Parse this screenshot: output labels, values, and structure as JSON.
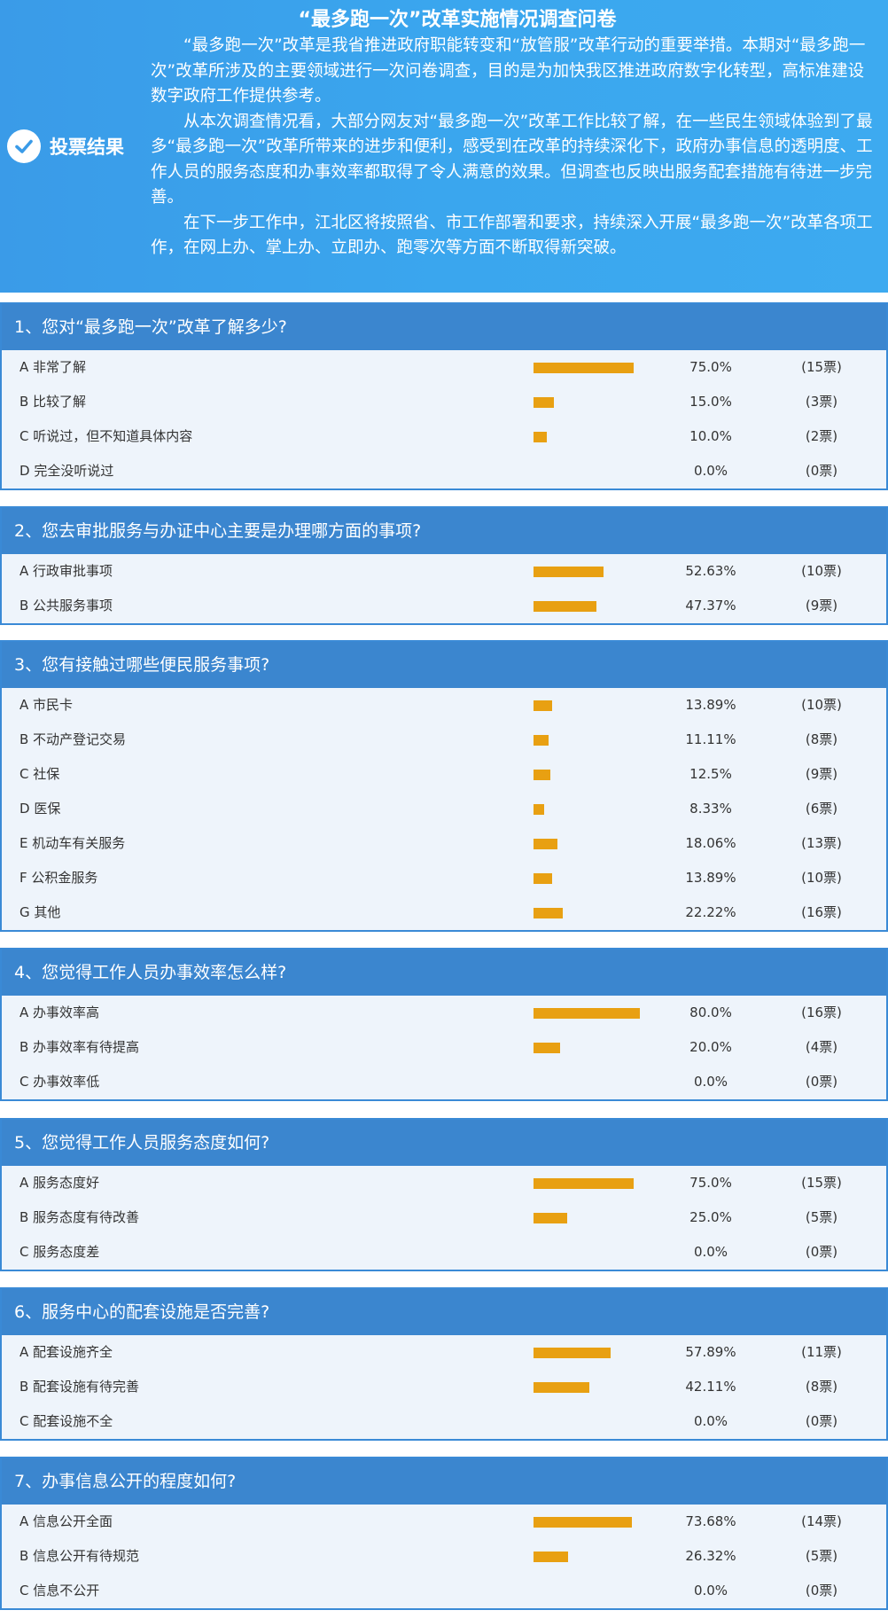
{
  "header": {
    "title": "“最多跑一次”改革实施情况调查问卷",
    "badge_label": "投票结果",
    "paragraphs": [
      "“最多跑一次”改革是我省推进政府职能转变和“放管服”改革行动的重要举措。本期对“最多跑一次”改革所涉及的主要领域进行一次问卷调查，目的是为加快我区推进政府数字化转型，高标准建设数字政府工作提供参考。",
      "从本次调查情况看，大部分网友对“最多跑一次”改革工作比较了解，在一些民生领域体验到了最多“最多跑一次”改革所带来的进步和便利，感受到在改革的持续深化下，政府办事信息的透明度、工作人员的服务态度和办事效率都取得了令人满意的效果。但调查也反映出服务配套措施有待进一步完善。",
      "在下一步工作中，江北区将按照省、市工作部署和要求，持续深入开展“最多跑一次”改革各项工作，在网上办、掌上办、立即办、跑零次等方面不断取得新突破。"
    ]
  },
  "colors": {
    "bar": "#e8a012",
    "section_header": "#3b86cf",
    "option_bg": "#eef4fb"
  },
  "questions": [
    {
      "title": "1、您对“最多跑一次”改革了解多少?",
      "options": [
        {
          "label": "A 非常了解",
          "percent": "75.0%",
          "votes": "(15票)",
          "fraction": 0.75
        },
        {
          "label": "B 比较了解",
          "percent": "15.0%",
          "votes": "(3票)",
          "fraction": 0.15
        },
        {
          "label": "C 听说过，但不知道具体内容",
          "percent": "10.0%",
          "votes": "(2票)",
          "fraction": 0.1
        },
        {
          "label": "D 完全没听说过",
          "percent": "0.0%",
          "votes": "(0票)",
          "fraction": 0.0
        }
      ]
    },
    {
      "title": "2、您去审批服务与办证中心主要是办理哪方面的事项?",
      "options": [
        {
          "label": "A 行政审批事项",
          "percent": "52.63%",
          "votes": "(10票)",
          "fraction": 0.5263
        },
        {
          "label": "B 公共服务事项",
          "percent": "47.37%",
          "votes": "(9票)",
          "fraction": 0.4737
        }
      ]
    },
    {
      "title": "3、您有接触过哪些便民服务事项?",
      "options": [
        {
          "label": "A 市民卡",
          "percent": "13.89%",
          "votes": "(10票)",
          "fraction": 0.1389
        },
        {
          "label": "B 不动产登记交易",
          "percent": "11.11%",
          "votes": "(8票)",
          "fraction": 0.1111
        },
        {
          "label": "C 社保",
          "percent": "12.5%",
          "votes": "(9票)",
          "fraction": 0.125
        },
        {
          "label": "D 医保",
          "percent": "8.33%",
          "votes": "(6票)",
          "fraction": 0.0833
        },
        {
          "label": "E 机动车有关服务",
          "percent": "18.06%",
          "votes": "(13票)",
          "fraction": 0.1806
        },
        {
          "label": "F 公积金服务",
          "percent": "13.89%",
          "votes": "(10票)",
          "fraction": 0.1389
        },
        {
          "label": "G 其他",
          "percent": "22.22%",
          "votes": "(16票)",
          "fraction": 0.2222
        }
      ]
    },
    {
      "title": "4、您觉得工作人员办事效率怎么样?",
      "options": [
        {
          "label": "A 办事效率高",
          "percent": "80.0%",
          "votes": "(16票)",
          "fraction": 0.8
        },
        {
          "label": "B 办事效率有待提高",
          "percent": "20.0%",
          "votes": "(4票)",
          "fraction": 0.2
        },
        {
          "label": "C 办事效率低",
          "percent": "0.0%",
          "votes": "(0票)",
          "fraction": 0.0
        }
      ]
    },
    {
      "title": "5、您觉得工作人员服务态度如何?",
      "options": [
        {
          "label": "A 服务态度好",
          "percent": "75.0%",
          "votes": "(15票)",
          "fraction": 0.75
        },
        {
          "label": "B 服务态度有待改善",
          "percent": "25.0%",
          "votes": "(5票)",
          "fraction": 0.25
        },
        {
          "label": "C 服务态度差",
          "percent": "0.0%",
          "votes": "(0票)",
          "fraction": 0.0
        }
      ]
    },
    {
      "title": "6、服务中心的配套设施是否完善?",
      "options": [
        {
          "label": "A 配套设施齐全",
          "percent": "57.89%",
          "votes": "(11票)",
          "fraction": 0.5789
        },
        {
          "label": "B 配套设施有待完善",
          "percent": "42.11%",
          "votes": "(8票)",
          "fraction": 0.4211
        },
        {
          "label": "C 配套设施不全",
          "percent": "0.0%",
          "votes": "(0票)",
          "fraction": 0.0
        }
      ]
    },
    {
      "title": "7、办事信息公开的程度如何?",
      "options": [
        {
          "label": "A 信息公开全面",
          "percent": "73.68%",
          "votes": "(14票)",
          "fraction": 0.7368
        },
        {
          "label": "B 信息公开有待规范",
          "percent": "26.32%",
          "votes": "(5票)",
          "fraction": 0.2632
        },
        {
          "label": "C 信息不公开",
          "percent": "0.0%",
          "votes": "(0票)",
          "fraction": 0.0
        }
      ]
    }
  ]
}
